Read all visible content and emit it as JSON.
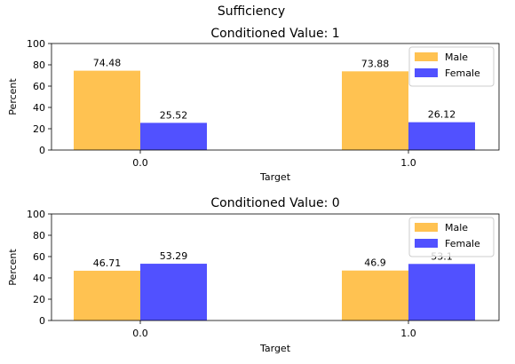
{
  "colors": {
    "male": "#FFB732",
    "female": "#3232FF",
    "axis": "#000000",
    "legend_border": "#cccccc"
  },
  "chart_data": {
    "suptitle": "Sufficiency",
    "panels": [
      {
        "type": "bar",
        "title": "Conditioned Value: 1",
        "xlabel": "Target",
        "ylabel": "Percent",
        "ylim": [
          0,
          100
        ],
        "yticks": [
          "0",
          "20",
          "40",
          "60",
          "80",
          "100"
        ],
        "categories": [
          "0.0",
          "1.0"
        ],
        "legend_position": "top-right",
        "series": [
          {
            "name": "Male",
            "values": [
              74.48,
              73.88
            ],
            "labels": [
              "74.48",
              "73.88"
            ]
          },
          {
            "name": "Female",
            "values": [
              25.52,
              26.12
            ],
            "labels": [
              "25.52",
              "26.12"
            ]
          }
        ]
      },
      {
        "type": "bar",
        "title": "Conditioned Value: 0",
        "xlabel": "Target",
        "ylabel": "Percent",
        "ylim": [
          0,
          100
        ],
        "yticks": [
          "0",
          "20",
          "40",
          "60",
          "80",
          "100"
        ],
        "categories": [
          "0.0",
          "1.0"
        ],
        "legend_position": "top-right",
        "series": [
          {
            "name": "Male",
            "values": [
              46.71,
              46.9
            ],
            "labels": [
              "46.71",
              "46.9"
            ]
          },
          {
            "name": "Female",
            "values": [
              53.29,
              53.1
            ],
            "labels": [
              "53.29",
              "53.1"
            ]
          }
        ]
      }
    ]
  }
}
